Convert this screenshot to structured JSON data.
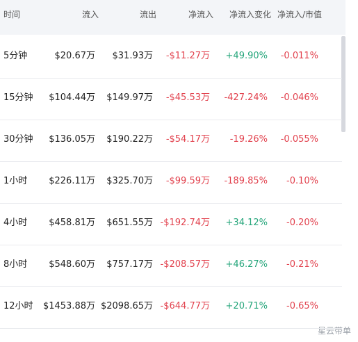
{
  "table": {
    "columns": [
      "时间",
      "流入",
      "流出",
      "净流入",
      "净流入变化",
      "净流入/市值"
    ],
    "rows": [
      [
        "5分钟",
        "$20.67万",
        "$31.93万",
        "-$11.27万",
        "+49.90%",
        "-0.011%"
      ],
      [
        "15分钟",
        "$104.44万",
        "$149.97万",
        "-$45.53万",
        "-427.24%",
        "-0.046%"
      ],
      [
        "30分钟",
        "$136.05万",
        "$190.22万",
        "-$54.17万",
        "-19.26%",
        "-0.055%"
      ],
      [
        "1小时",
        "$226.11万",
        "$325.70万",
        "-$99.59万",
        "-189.85%",
        "-0.10%"
      ],
      [
        "4小时",
        "$458.81万",
        "$651.55万",
        "-$192.74万",
        "+34.12%",
        "-0.20%"
      ],
      [
        "8小时",
        "$548.60万",
        "$757.17万",
        "-$208.57万",
        "+46.27%",
        "-0.21%"
      ],
      [
        "12小时",
        "$1453.88万",
        "$2098.65万",
        "-$644.77万",
        "+20.71%",
        "-0.65%"
      ]
    ]
  },
  "watermark": "星云带单"
}
